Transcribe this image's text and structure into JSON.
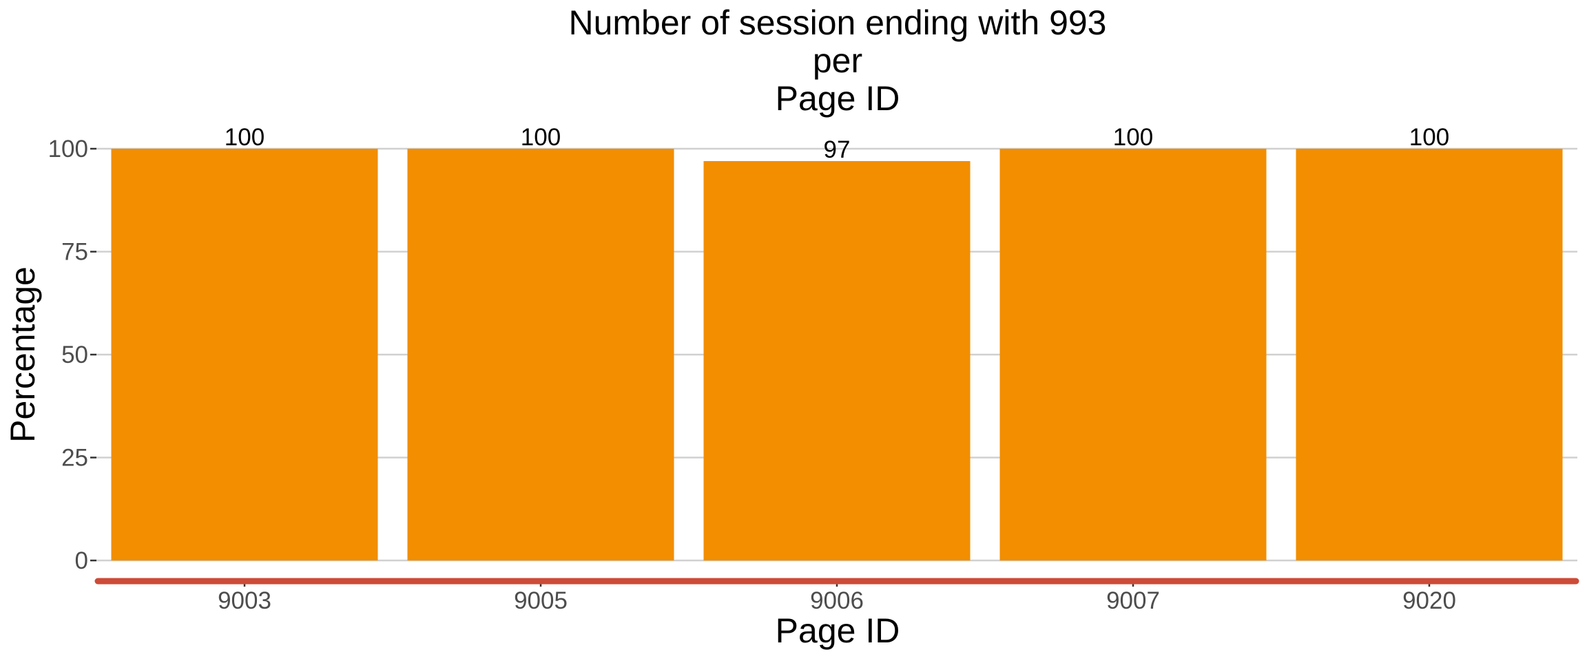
{
  "chart_data": {
    "type": "bar",
    "title_lines": [
      "Number of session ending with 993",
      "per",
      "Page ID"
    ],
    "xlabel": "Page ID",
    "ylabel": "Percentage",
    "categories": [
      "9003",
      "9005",
      "9006",
      "9007",
      "9020"
    ],
    "values": [
      100,
      100,
      97,
      100,
      100
    ],
    "data_labels": [
      "100",
      "100",
      "97",
      "100",
      "100"
    ],
    "ylim": [
      0,
      100
    ],
    "yticks": [
      0,
      25,
      50,
      75,
      100
    ],
    "grid": true,
    "legend": "none",
    "bar_color": "#f28e00",
    "axis_line_color": "#cc4b37"
  }
}
